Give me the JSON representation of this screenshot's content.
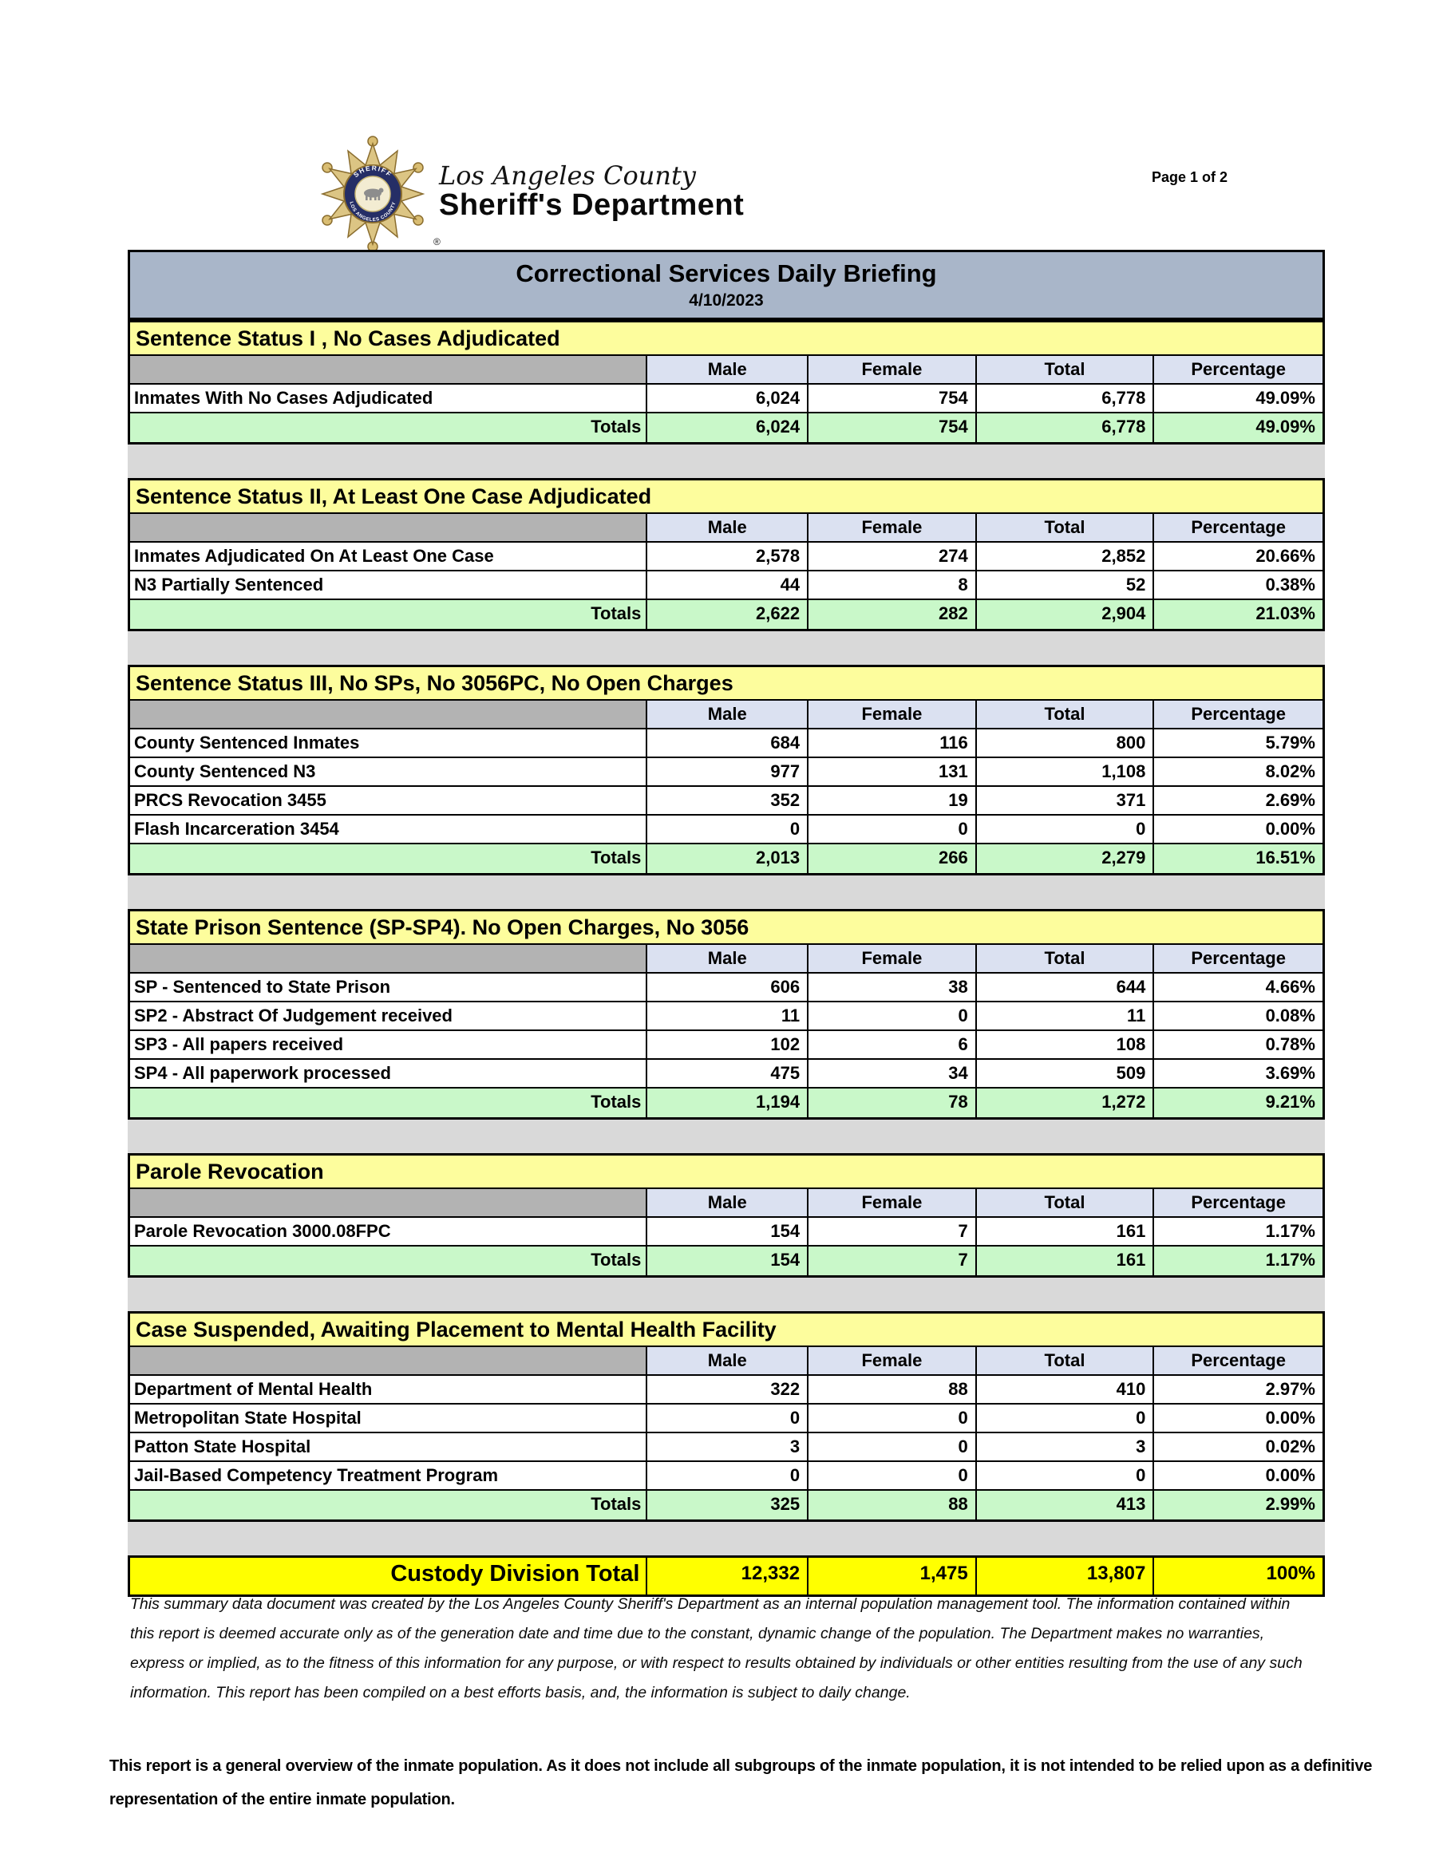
{
  "header": {
    "brand_line1": "Los Angeles County",
    "brand_line2": "Sheriff's Department",
    "badge_top_text": "SHERIFF",
    "badge_bottom_text": "LOS ANGELES COUNTY",
    "reg_mark": "®",
    "page_label": "Page 1 of 2"
  },
  "report": {
    "title": "Correctional Services Daily Briefing",
    "date": "4/10/2023"
  },
  "columns": [
    "Male",
    "Female",
    "Total",
    "Percentage"
  ],
  "totals_label": "Totals",
  "sections": [
    {
      "title": "Sentence Status I , No Cases Adjudicated",
      "rows": [
        {
          "label": "Inmates With No Cases Adjudicated",
          "male": "6,024",
          "female": "754",
          "total": "6,778",
          "pct": "49.09%"
        }
      ],
      "totals": {
        "male": "6,024",
        "female": "754",
        "total": "6,778",
        "pct": "49.09%"
      }
    },
    {
      "title": "Sentence Status II, At Least One Case Adjudicated",
      "rows": [
        {
          "label": "Inmates Adjudicated On At Least One Case",
          "male": "2,578",
          "female": "274",
          "total": "2,852",
          "pct": "20.66%"
        },
        {
          "label": "N3 Partially Sentenced",
          "male": "44",
          "female": "8",
          "total": "52",
          "pct": "0.38%"
        }
      ],
      "totals": {
        "male": "2,622",
        "female": "282",
        "total": "2,904",
        "pct": "21.03%"
      }
    },
    {
      "title": "Sentence Status III, No SPs, No 3056PC, No Open Charges",
      "rows": [
        {
          "label": "County Sentenced Inmates",
          "male": "684",
          "female": "116",
          "total": "800",
          "pct": "5.79%"
        },
        {
          "label": "County Sentenced N3",
          "male": "977",
          "female": "131",
          "total": "1,108",
          "pct": "8.02%"
        },
        {
          "label": "PRCS Revocation 3455",
          "male": "352",
          "female": "19",
          "total": "371",
          "pct": "2.69%"
        },
        {
          "label": "Flash Incarceration 3454",
          "male": "0",
          "female": "0",
          "total": "0",
          "pct": "0.00%"
        }
      ],
      "totals": {
        "male": "2,013",
        "female": "266",
        "total": "2,279",
        "pct": "16.51%"
      }
    },
    {
      "title": "State Prison Sentence (SP-SP4). No Open Charges, No 3056",
      "rows": [
        {
          "label": "SP - Sentenced to State Prison",
          "male": "606",
          "female": "38",
          "total": "644",
          "pct": "4.66%"
        },
        {
          "label": "SP2 - Abstract Of Judgement received",
          "male": "11",
          "female": "0",
          "total": "11",
          "pct": "0.08%"
        },
        {
          "label": "SP3 - All papers received",
          "male": "102",
          "female": "6",
          "total": "108",
          "pct": "0.78%"
        },
        {
          "label": "SP4 - All paperwork processed",
          "male": "475",
          "female": "34",
          "total": "509",
          "pct": "3.69%"
        }
      ],
      "totals": {
        "male": "1,194",
        "female": "78",
        "total": "1,272",
        "pct": "9.21%"
      }
    },
    {
      "title": "Parole Revocation",
      "rows": [
        {
          "label": "Parole Revocation 3000.08FPC",
          "male": "154",
          "female": "7",
          "total": "161",
          "pct": "1.17%"
        }
      ],
      "totals": {
        "male": "154",
        "female": "7",
        "total": "161",
        "pct": "1.17%"
      }
    },
    {
      "title": "Case Suspended, Awaiting Placement to Mental Health Facility",
      "rows": [
        {
          "label": "Department of Mental Health",
          "male": "322",
          "female": "88",
          "total": "410",
          "pct": "2.97%"
        },
        {
          "label": "Metropolitan State Hospital",
          "male": "0",
          "female": "0",
          "total": "0",
          "pct": "0.00%"
        },
        {
          "label": "Patton State Hospital",
          "male": "3",
          "female": "0",
          "total": "3",
          "pct": "0.02%"
        },
        {
          "label": "Jail-Based Competency Treatment Program",
          "male": "0",
          "female": "0",
          "total": "0",
          "pct": "0.00%"
        }
      ],
      "totals": {
        "male": "325",
        "female": "88",
        "total": "413",
        "pct": "2.99%"
      }
    }
  ],
  "grand_total": {
    "label": "Custody Division Total",
    "male": "12,332",
    "female": "1,475",
    "total": "13,807",
    "pct": "100%"
  },
  "footer": {
    "disclaimer": "This summary data document was created by the Los Angeles County Sheriff's Department as an internal population management tool.  The information contained within this report is deemed accurate only as of the generation date and time due to the constant, dynamic change of the population.  The Department makes no warranties, express or implied, as to the fitness of this information for any purpose, or with respect to results obtained by individuals or other entities resulting from the use of any such information.  This report has been compiled on a best efforts basis, and, the information is subject to daily change.",
    "note": "This report is a general overview of the inmate population.  As it does not include all subgroups of the inmate population, it is not intended to be relied upon as a definitive representation of the entire inmate population."
  },
  "colors": {
    "title_bar": "#a9b6c9",
    "section_header": "#fdfd9d",
    "column_header": "#dbe1f1",
    "column_header_label": "#b3b3b3",
    "totals_row": "#c9f8c9",
    "spacer": "#d9d9d9",
    "grand_total": "#ffff00",
    "badge_gold": "#dcc584",
    "badge_navy": "#252e66"
  }
}
